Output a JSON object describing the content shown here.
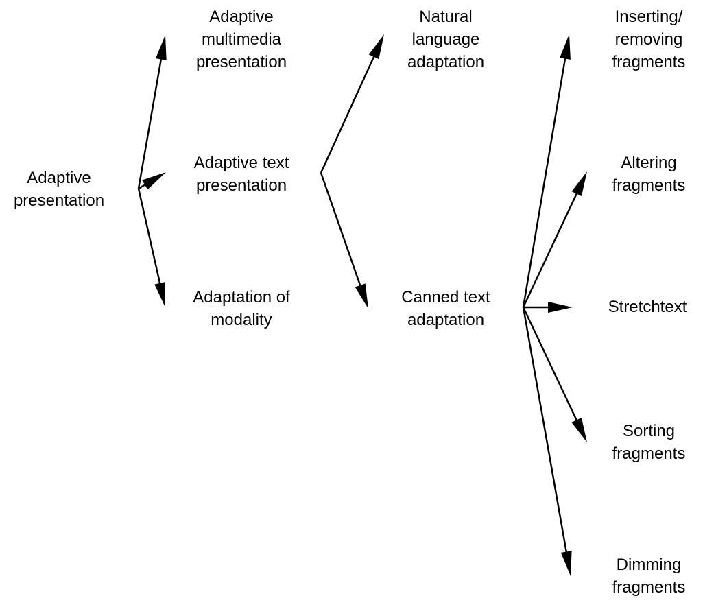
{
  "nodes": {
    "adaptive_presentation": [
      "Adaptive",
      "presentation"
    ],
    "adaptive_multimedia": [
      "Adaptive",
      "multimedia",
      "presentation"
    ],
    "adaptive_text": [
      "Adaptive text",
      "presentation"
    ],
    "adaptation_modality": [
      "Adaptation of",
      "modality"
    ],
    "natural_language": [
      "Natural",
      "language",
      "adaptation"
    ],
    "canned_text": [
      "Canned text",
      "adaptation"
    ],
    "inserting_removing": [
      "Inserting/",
      "removing",
      "fragments"
    ],
    "altering": [
      "Altering",
      "fragments"
    ],
    "stretchtext": [
      "Stretchtext"
    ],
    "sorting": [
      "Sorting",
      "fragments"
    ],
    "dimming": [
      "Dimming",
      "fragments"
    ]
  },
  "colors": {
    "ink": "#000000",
    "background": "#ffffff"
  }
}
